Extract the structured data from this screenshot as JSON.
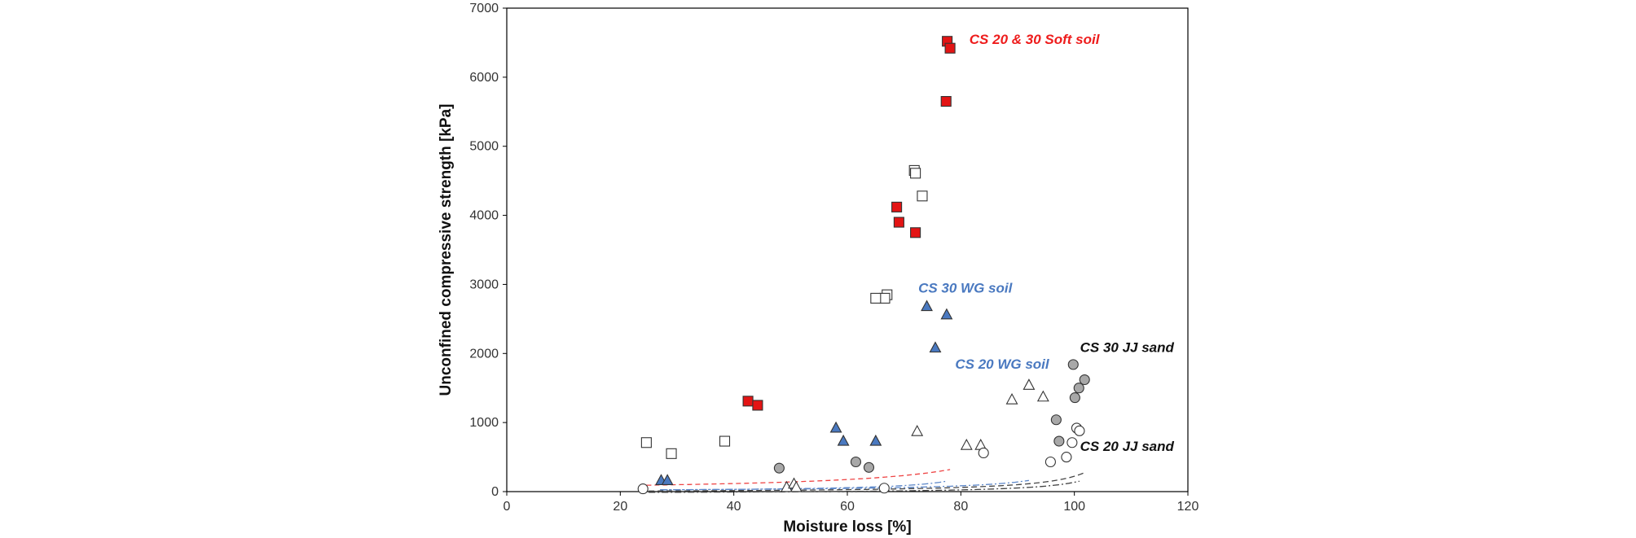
{
  "chart_data": {
    "type": "scatter",
    "title": "",
    "xlabel": "Moisture loss [%]",
    "ylabel": "Unconfined compressive strength [kPa]",
    "xlim": [
      0,
      120
    ],
    "ylim": [
      0,
      7000
    ],
    "xticks": [
      0,
      20,
      40,
      60,
      80,
      100,
      120
    ],
    "yticks": [
      0,
      1000,
      2000,
      3000,
      4000,
      5000,
      6000,
      7000
    ],
    "grid": false,
    "legend": "inline labels",
    "labels": [
      {
        "text": "CS 20 & 30 Soft soil",
        "color": "#ee1c1c",
        "x": 81.5,
        "y": 6480
      },
      {
        "text": "CS 30 WG soil",
        "color": "#4a79c0",
        "x": 72.5,
        "y": 2880
      },
      {
        "text": "CS 20 WG soil",
        "color": "#4a79c0",
        "x": 79,
        "y": 1780
      },
      {
        "text": "CS 30 JJ sand",
        "color": "#111111",
        "x": 101,
        "y": 2020
      },
      {
        "text": "CS 20 JJ sand",
        "color": "#111111",
        "x": 101,
        "y": 590
      }
    ],
    "series": [
      {
        "name": "CS 30 Soft soil",
        "marker": "square",
        "fill": "#e31414",
        "stroke": "#333333",
        "points": [
          [
            77.6,
            6520
          ],
          [
            78.1,
            6420
          ],
          [
            77.4,
            5650
          ],
          [
            68.7,
            4120
          ],
          [
            69.1,
            3900
          ],
          [
            72.0,
            3750
          ],
          [
            42.5,
            1310
          ],
          [
            44.2,
            1250
          ]
        ]
      },
      {
        "name": "CS 20 Soft soil",
        "marker": "square",
        "fill": "#ffffff",
        "stroke": "#333333",
        "points": [
          [
            71.8,
            4650
          ],
          [
            72.0,
            4610
          ],
          [
            73.2,
            4280
          ],
          [
            67.0,
            2850
          ],
          [
            66.6,
            2800
          ],
          [
            65.0,
            2800
          ],
          [
            24.6,
            710
          ],
          [
            29.0,
            550
          ],
          [
            38.4,
            730
          ]
        ]
      },
      {
        "name": "CS 30 WG soil",
        "marker": "triangle",
        "fill": "#4a79c0",
        "stroke": "#333333",
        "points": [
          [
            74.0,
            2680
          ],
          [
            77.5,
            2560
          ],
          [
            75.5,
            2080
          ],
          [
            58.0,
            920
          ],
          [
            59.3,
            730
          ],
          [
            65.0,
            730
          ],
          [
            27.2,
            160
          ],
          [
            28.3,
            160
          ]
        ]
      },
      {
        "name": "CS 20 WG soil",
        "marker": "triangle",
        "fill": "#ffffff",
        "stroke": "#333333",
        "points": [
          [
            92.0,
            1540
          ],
          [
            94.5,
            1370
          ],
          [
            89.0,
            1330
          ],
          [
            72.3,
            870
          ],
          [
            81.0,
            670
          ],
          [
            83.5,
            670
          ],
          [
            49.3,
            60
          ],
          [
            50.6,
            110
          ],
          [
            51.0,
            60
          ]
        ]
      },
      {
        "name": "CS 30 JJ sand",
        "marker": "circle",
        "fill": "#a8a8a8",
        "stroke": "#333333",
        "points": [
          [
            99.8,
            1840
          ],
          [
            101.8,
            1620
          ],
          [
            100.8,
            1500
          ],
          [
            100.1,
            1360
          ],
          [
            96.8,
            1040
          ],
          [
            97.3,
            730
          ],
          [
            61.5,
            430
          ],
          [
            63.8,
            350
          ],
          [
            48.0,
            340
          ]
        ]
      },
      {
        "name": "CS 20 JJ sand",
        "marker": "circle",
        "fill": "#ffffff",
        "stroke": "#333333",
        "points": [
          [
            100.4,
            920
          ],
          [
            100.9,
            880
          ],
          [
            99.6,
            710
          ],
          [
            84.0,
            560
          ],
          [
            98.6,
            500
          ],
          [
            95.8,
            430
          ],
          [
            24.0,
            40
          ],
          [
            66.5,
            50
          ]
        ]
      }
    ],
    "fits": [
      {
        "name": "CS 20 & 30 Soft soil fit",
        "color": "#ee4444",
        "dash": "6,4",
        "a": 70,
        "x0": 100,
        "c": 0,
        "xrange": [
          24.6,
          78.1
        ]
      },
      {
        "name": "CS 30 WG soil fit",
        "color": "#5b86c8",
        "dash": "8,3,2,3",
        "a": 18,
        "x0": 88,
        "c": 0,
        "xrange": [
          27.2,
          77.5
        ]
      },
      {
        "name": "CS 20 WG soil fit",
        "color": "#5b86c8",
        "dash": "8,3,2,3",
        "a": 20,
        "x0": 105,
        "c": 0,
        "xrange": [
          27,
          92
        ]
      },
      {
        "name": "CS 30 JJ sand fit",
        "color": "#444444",
        "dash": "7,4",
        "a": 22,
        "x0": 110,
        "c": -20,
        "xrange": [
          25,
          101.8
        ]
      },
      {
        "name": "CS 20 JJ sand fit",
        "color": "#444444",
        "dash": "8,3,2,3",
        "a": 15,
        "x0": 110,
        "c": -30,
        "xrange": [
          25,
          100.9
        ]
      }
    ]
  }
}
